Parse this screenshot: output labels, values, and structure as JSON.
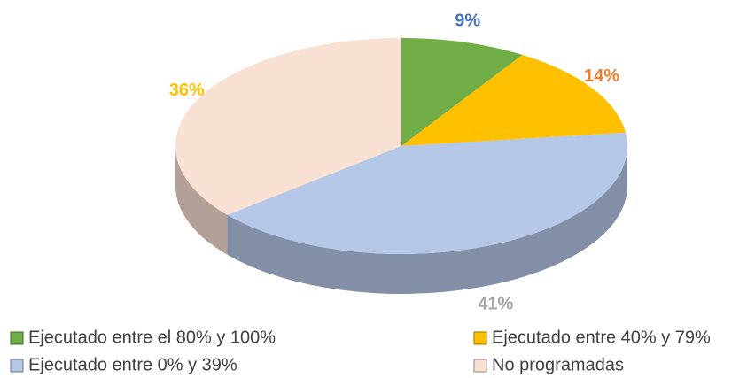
{
  "chart_data": {
    "type": "pie",
    "categories": [
      "Ejecutado entre el 80% y 100%",
      "Ejecutado entre 40% y 79%",
      "Ejecutado entre 0% y 39%",
      "No programadas"
    ],
    "values": [
      9,
      14,
      41,
      36
    ],
    "value_labels": [
      "9%",
      "14%",
      "41%",
      "36%"
    ],
    "colors": [
      "#70ad47",
      "#ffc000",
      "#b4c7e7",
      "#f8e0d3"
    ],
    "label_colors": [
      "#4472c4",
      "#ed7d31",
      "#a5a5a5",
      "#ffc000"
    ]
  }
}
